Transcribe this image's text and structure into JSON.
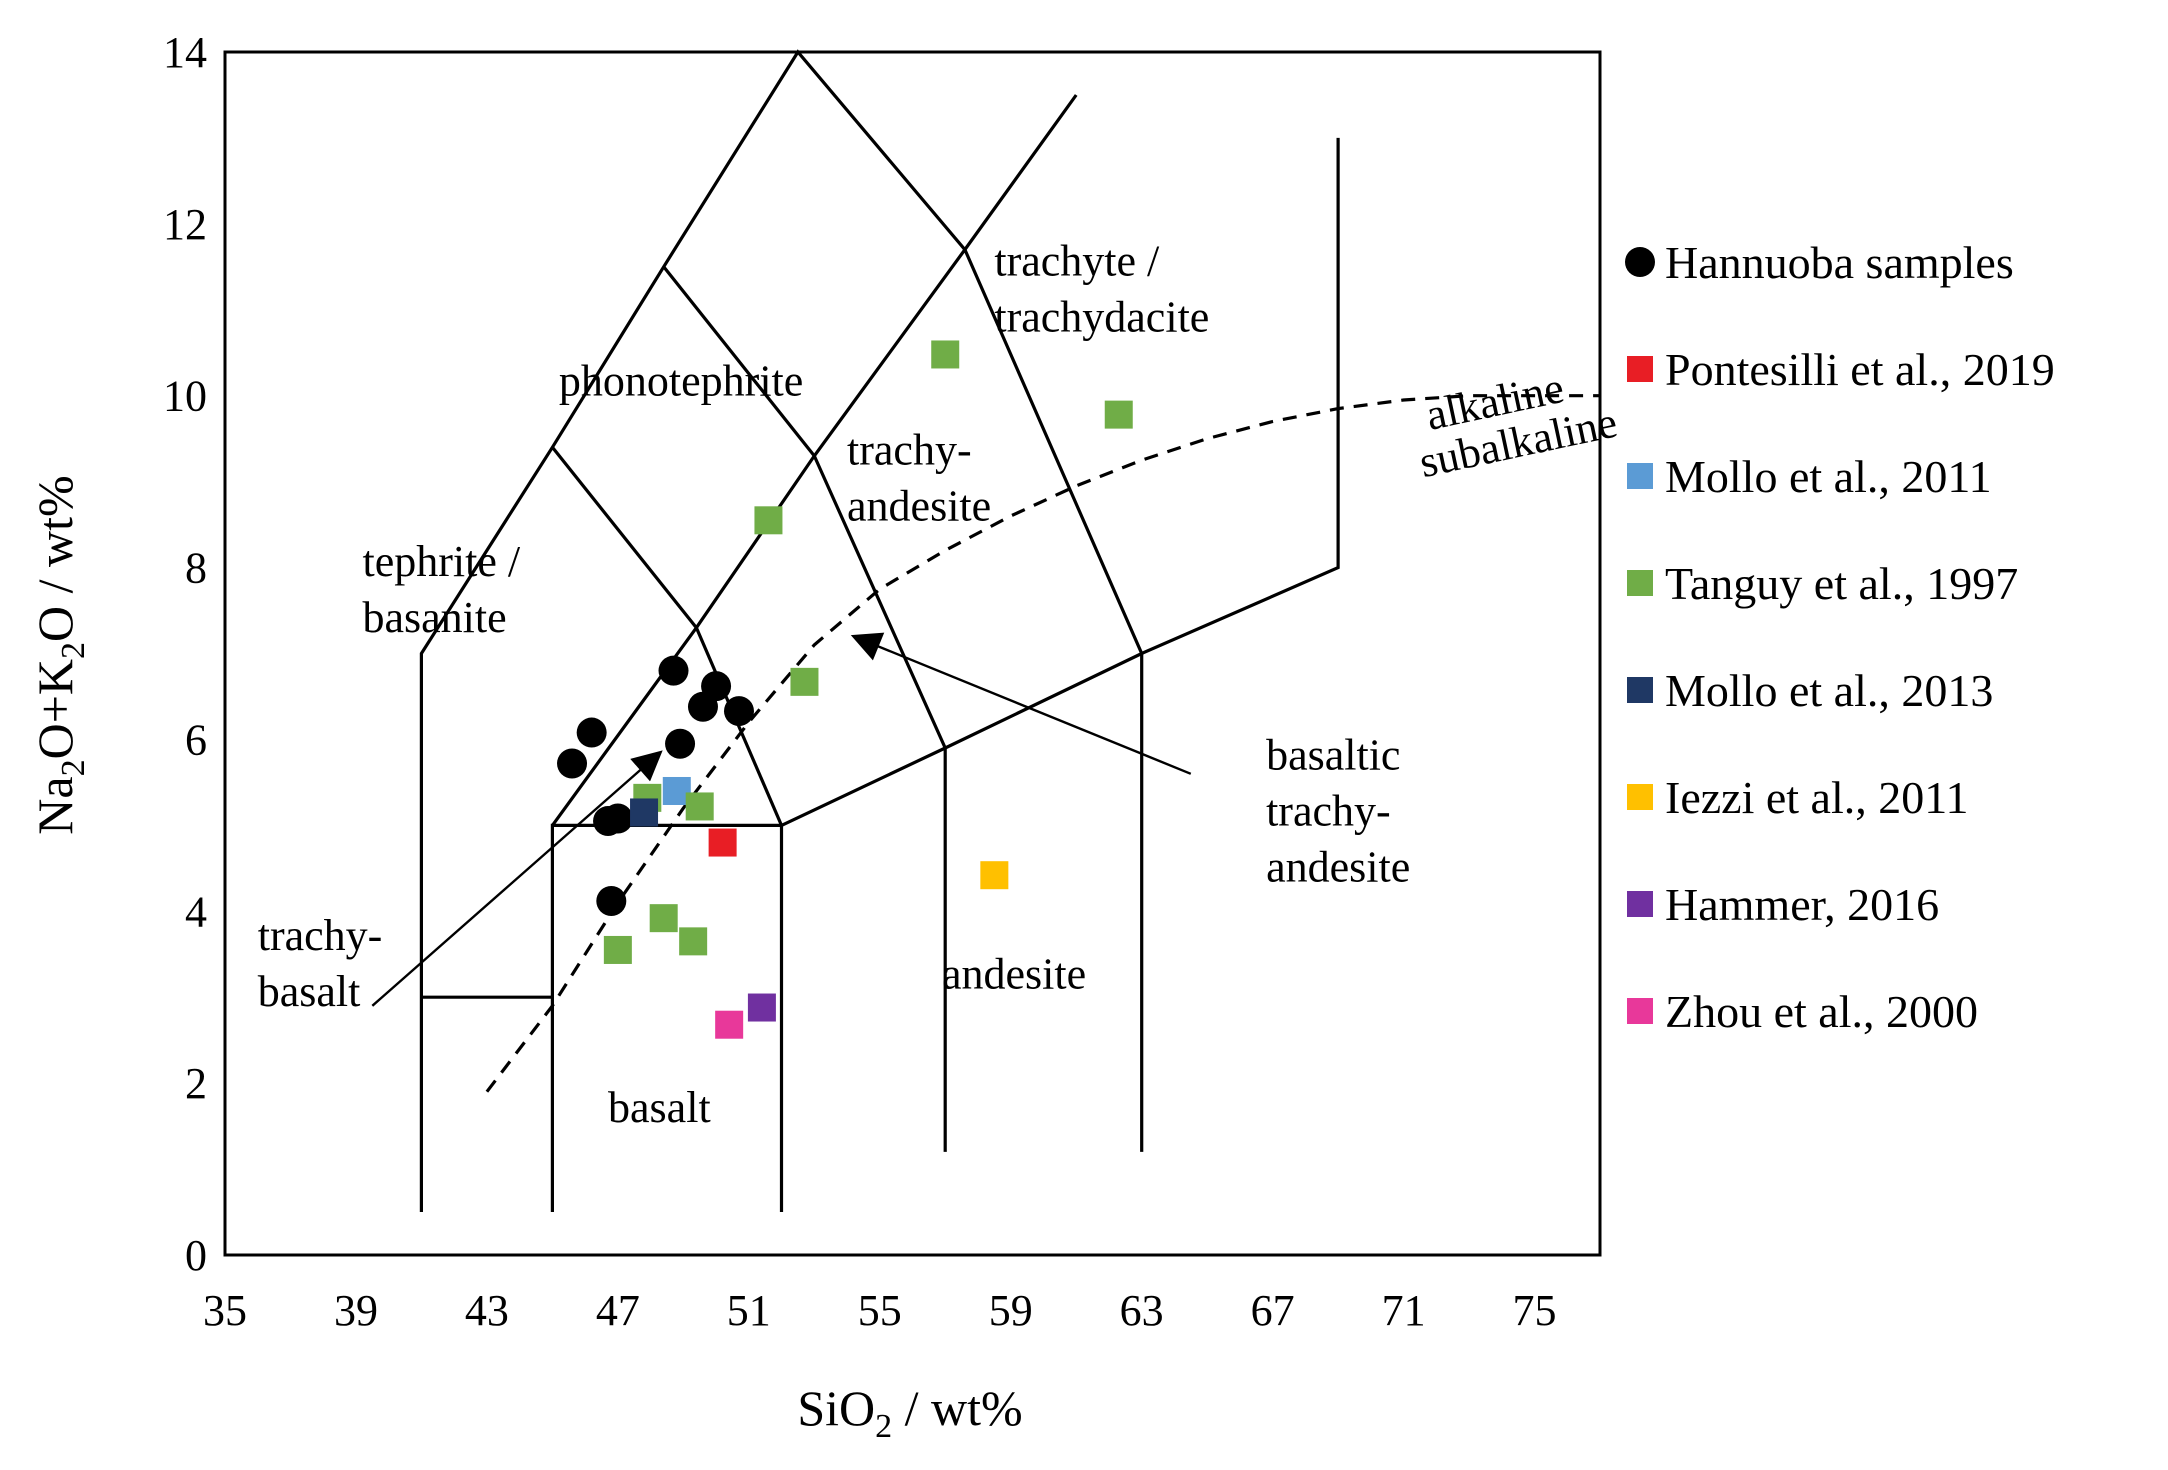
{
  "chart_data": {
    "type": "scatter",
    "title": "",
    "xlabel": "SiO₂ / wt%",
    "ylabel": "Na₂O+K₂O / wt%",
    "xlabel_parts": {
      "base": "SiO",
      "sub": "2",
      "rest": " / wt%"
    },
    "ylabel_parts": {
      "a": "Na",
      "a_sub": "2",
      "b": "O+K",
      "b_sub": "2",
      "c": "O / wt%"
    },
    "xlim": [
      35,
      77
    ],
    "ylim": [
      0,
      14
    ],
    "xticks": [
      35,
      39,
      43,
      47,
      51,
      55,
      59,
      63,
      67,
      71,
      75
    ],
    "yticks": [
      0,
      2,
      4,
      6,
      8,
      10,
      12,
      14
    ],
    "grid": false,
    "legend_position": "right",
    "tas_boundaries": [
      [
        [
          41,
          0.5
        ],
        [
          41,
          7
        ],
        [
          45,
          9.4
        ],
        [
          48.4,
          11.5
        ],
        [
          52.5,
          14
        ],
        [
          57.6,
          11.7
        ],
        [
          61,
          13.5
        ]
      ],
      [
        [
          45,
          0.5
        ],
        [
          45,
          5
        ],
        [
          52,
          5
        ],
        [
          52,
          0.5
        ]
      ],
      [
        [
          41,
          3
        ],
        [
          45,
          3
        ]
      ],
      [
        [
          45,
          5
        ],
        [
          49.4,
          7.3
        ],
        [
          53,
          9.3
        ],
        [
          57.6,
          11.7
        ]
      ],
      [
        [
          45,
          9.4
        ],
        [
          49.4,
          7.3
        ]
      ],
      [
        [
          48.4,
          11.5
        ],
        [
          53,
          9.3
        ]
      ],
      [
        [
          49.4,
          7.3
        ],
        [
          52,
          5
        ]
      ],
      [
        [
          52,
          5
        ],
        [
          57,
          5.9
        ],
        [
          63,
          7
        ],
        [
          69,
          8
        ],
        [
          69,
          13
        ]
      ],
      [
        [
          53,
          9.3
        ],
        [
          57,
          5.9
        ],
        [
          57,
          1.2
        ]
      ],
      [
        [
          57.6,
          11.7
        ],
        [
          63,
          7
        ],
        [
          63,
          1.2
        ]
      ]
    ],
    "alkaline_divider": [
      [
        43,
        1.9
      ],
      [
        45,
        2.9
      ],
      [
        47,
        4.1
      ],
      [
        49,
        5.2
      ],
      [
        51,
        6.2
      ],
      [
        53,
        7.1
      ],
      [
        55,
        7.75
      ],
      [
        57,
        8.2
      ],
      [
        59,
        8.6
      ],
      [
        61,
        8.95
      ],
      [
        63,
        9.25
      ],
      [
        65,
        9.5
      ],
      [
        67,
        9.7
      ],
      [
        69,
        9.85
      ],
      [
        71,
        9.95
      ],
      [
        73,
        10.0
      ],
      [
        77,
        10.0
      ]
    ],
    "region_labels": [
      {
        "lines": [
          "phonotephrite"
        ],
        "x": 45.2,
        "y": 10.0
      },
      {
        "lines": [
          "trachyte /",
          "trachydacite"
        ],
        "x": 58.5,
        "y": 11.4
      },
      {
        "lines": [
          "trachy-",
          "andesite"
        ],
        "x": 54.0,
        "y": 9.2
      },
      {
        "lines": [
          "tephrite /",
          "basanite"
        ],
        "x": 39.2,
        "y": 7.9
      },
      {
        "lines": [
          "basaltic",
          "trachy-",
          "andesite"
        ],
        "x": 66.8,
        "y": 5.65
      },
      {
        "lines": [
          "trachy-",
          "basalt"
        ],
        "x": 36.0,
        "y": 3.55
      },
      {
        "lines": [
          "andesite"
        ],
        "x": 56.9,
        "y": 3.1
      },
      {
        "lines": [
          "basalt"
        ],
        "x": 46.7,
        "y": 1.55
      },
      {
        "lines": [
          "alkaline"
        ],
        "x": 71.8,
        "y": 9.6,
        "rotate": -12
      },
      {
        "lines": [
          "subalkaline"
        ],
        "x": 71.6,
        "y": 9.05,
        "rotate": -12
      }
    ],
    "annotation_arrows": [
      {
        "from": [
          39.5,
          2.9
        ],
        "to": [
          48.3,
          5.85
        ],
        "note": "points to basaltic trachy-andesite field edge (trachy-basalt label)"
      },
      {
        "from": [
          64.5,
          5.6
        ],
        "to": [
          54.2,
          7.2
        ],
        "note": "basaltic trachy-andesite label pointer"
      }
    ],
    "series": [
      {
        "name": "Hannuoba samples",
        "marker": "circle",
        "color": "#000000",
        "points": [
          [
            45.6,
            5.72
          ],
          [
            46.2,
            6.08
          ],
          [
            46.7,
            5.05
          ],
          [
            46.8,
            4.12
          ],
          [
            47.0,
            5.08
          ],
          [
            48.7,
            6.8
          ],
          [
            48.9,
            5.95
          ],
          [
            49.6,
            6.38
          ],
          [
            50.0,
            6.62
          ],
          [
            50.7,
            6.33
          ]
        ]
      },
      {
        "name": "Pontesilli et al., 2019",
        "marker": "square",
        "color": "#e81e25",
        "points": [
          [
            50.2,
            4.8
          ]
        ]
      },
      {
        "name": "Mollo et al., 2011",
        "marker": "square",
        "color": "#5b9bd5",
        "points": [
          [
            48.8,
            5.4
          ]
        ]
      },
      {
        "name": "Tanguy et al., 1997",
        "marker": "square",
        "color": "#70ad47",
        "points": [
          [
            47.0,
            3.55
          ],
          [
            47.9,
            5.32
          ],
          [
            48.4,
            3.92
          ],
          [
            49.3,
            3.65
          ],
          [
            49.5,
            5.22
          ],
          [
            51.6,
            8.55
          ],
          [
            52.7,
            6.67
          ],
          [
            57.0,
            10.48
          ],
          [
            62.3,
            9.78
          ]
        ]
      },
      {
        "name": "Mollo et al., 2013",
        "marker": "square",
        "color": "#1f3864",
        "points": [
          [
            47.8,
            5.15
          ]
        ]
      },
      {
        "name": "Iezzi et al., 2011",
        "marker": "square",
        "color": "#ffc000",
        "points": [
          [
            58.5,
            4.42
          ]
        ]
      },
      {
        "name": "Hammer, 2016",
        "marker": "square",
        "color": "#7030a0",
        "points": [
          [
            51.4,
            2.88
          ]
        ]
      },
      {
        "name": "Zhou et al., 2000",
        "marker": "square",
        "color": "#e8389a",
        "points": [
          [
            50.4,
            2.68
          ]
        ]
      }
    ]
  }
}
